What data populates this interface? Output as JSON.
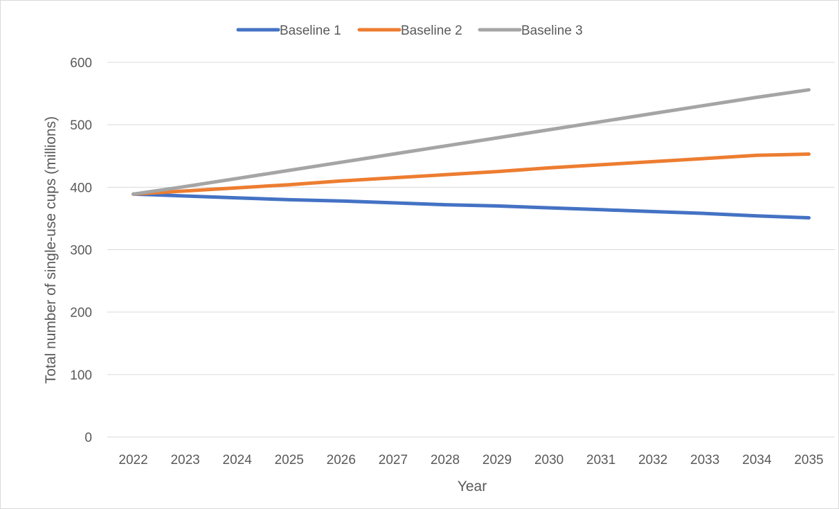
{
  "chart_data": {
    "type": "line",
    "title": "",
    "xlabel": "Year",
    "ylabel": "Total number of single-use cups (millions)",
    "categories": [
      "2022",
      "2023",
      "2024",
      "2025",
      "2026",
      "2027",
      "2028",
      "2029",
      "2030",
      "2031",
      "2032",
      "2033",
      "2034",
      "2035"
    ],
    "ylim": [
      0,
      600
    ],
    "yticks": [
      0,
      100,
      200,
      300,
      400,
      500,
      600
    ],
    "grid": true,
    "legend": "top-center",
    "series": [
      {
        "name": "Baseline 1",
        "color": "#4472C4",
        "values": [
          389,
          386,
          383,
          380,
          378,
          375,
          372,
          370,
          367,
          364,
          361,
          358,
          354,
          351
        ]
      },
      {
        "name": "Baseline 2",
        "color": "#ED7D31",
        "values": [
          389,
          394,
          399,
          404,
          410,
          415,
          420,
          425,
          431,
          436,
          441,
          446,
          451,
          453
        ]
      },
      {
        "name": "Baseline 3",
        "color": "#A5A5A5",
        "values": [
          389,
          401,
          414,
          427,
          440,
          453,
          466,
          479,
          492,
          505,
          518,
          531,
          544,
          556
        ]
      }
    ]
  }
}
